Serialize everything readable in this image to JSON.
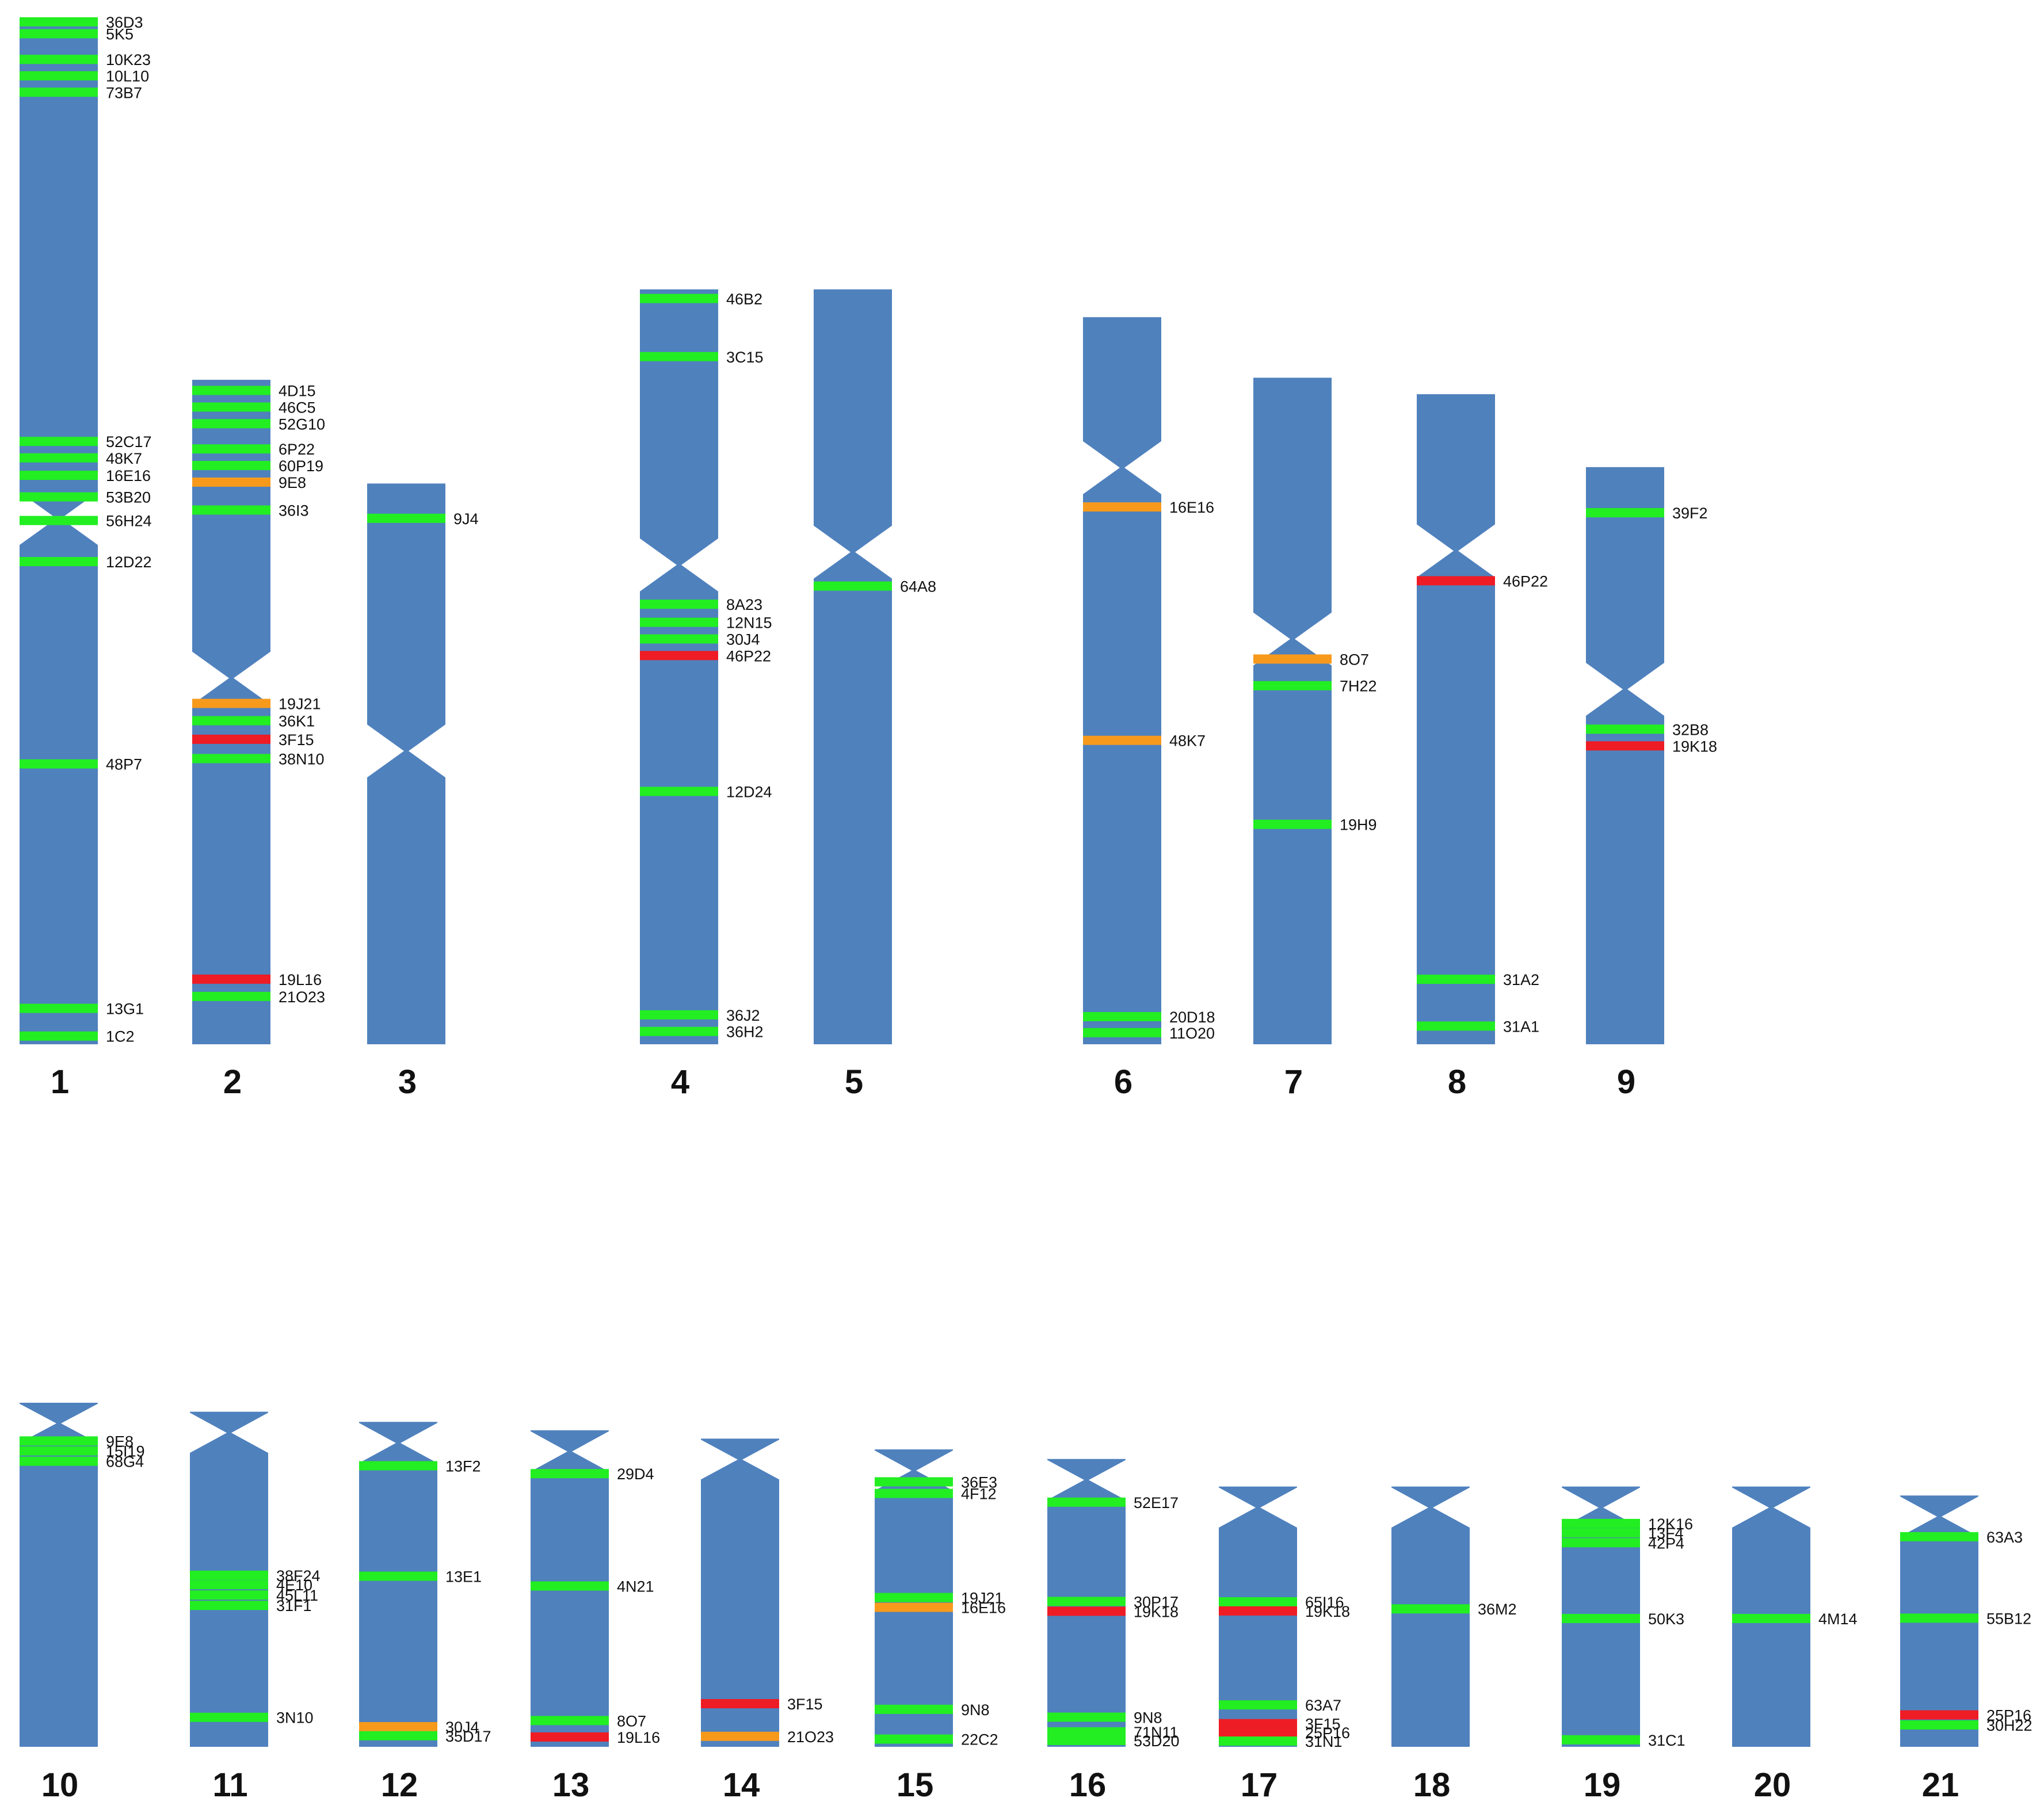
{
  "colors": {
    "chromosome": "#4f81bd",
    "band_green": "#22ee22",
    "band_orange": "#f79a1c",
    "band_red": "#ee1c24",
    "text": "#111111"
  },
  "chart_data": {
    "type": "karyotype-marker-map",
    "unit": "relative position along chromosome (0 = top, 1 = bottom)",
    "chromosomes": [
      {
        "id": "1",
        "label": "1",
        "length": 1.0,
        "centromere": 0.488,
        "bands": [
          {
            "name": "36D3",
            "pos": 0.0,
            "color": "green"
          },
          {
            "name": "5K5",
            "pos": 0.016,
            "color": "green"
          },
          {
            "name": "10K23",
            "pos": 0.041,
            "color": "green"
          },
          {
            "name": "10L10",
            "pos": 0.057,
            "color": "green"
          },
          {
            "name": "73B7",
            "pos": 0.073,
            "color": "green"
          },
          {
            "name": "52C17",
            "pos": 0.413,
            "color": "green"
          },
          {
            "name": "48K7",
            "pos": 0.429,
            "color": "green"
          },
          {
            "name": "16E16",
            "pos": 0.446,
            "color": "green"
          },
          {
            "name": "53B20",
            "pos": 0.467,
            "color": "green"
          },
          {
            "name": "56H24",
            "pos": 0.49,
            "color": "green"
          },
          {
            "name": "12D22",
            "pos": 0.53,
            "color": "green"
          },
          {
            "name": "48P7",
            "pos": 0.727,
            "color": "green"
          },
          {
            "name": "13G1",
            "pos": 0.965,
            "color": "green"
          },
          {
            "name": "1C2",
            "pos": 0.992,
            "color": "green"
          }
        ]
      },
      {
        "id": "2",
        "label": "2",
        "length": 0.647,
        "centromere": 0.449,
        "bands": [
          {
            "name": "4D15",
            "pos": 0.016,
            "color": "green"
          },
          {
            "name": "46C5",
            "pos": 0.041,
            "color": "green"
          },
          {
            "name": "52G10",
            "pos": 0.066,
            "color": "green"
          },
          {
            "name": "6P22",
            "pos": 0.104,
            "color": "green"
          },
          {
            "name": "60P19",
            "pos": 0.129,
            "color": "green"
          },
          {
            "name": "9E8",
            "pos": 0.154,
            "color": "orange"
          },
          {
            "name": "36I3",
            "pos": 0.196,
            "color": "green"
          },
          {
            "name": "19J21",
            "pos": 0.487,
            "color": "orange"
          },
          {
            "name": "36K1",
            "pos": 0.513,
            "color": "green"
          },
          {
            "name": "3F15",
            "pos": 0.541,
            "color": "red"
          },
          {
            "name": "38N10",
            "pos": 0.57,
            "color": "green"
          },
          {
            "name": "19L16",
            "pos": 0.902,
            "color": "red"
          },
          {
            "name": "21O23",
            "pos": 0.928,
            "color": "green"
          }
        ]
      },
      {
        "id": "3",
        "label": "3",
        "length": 0.546,
        "centromere": 0.477,
        "bands": [
          {
            "name": "9J4",
            "pos": 0.062,
            "color": "green"
          }
        ]
      },
      {
        "id": "4",
        "label": "4",
        "length": 0.735,
        "centromere": 0.365,
        "bands": [
          {
            "name": "46B2",
            "pos": 0.012,
            "color": "green"
          },
          {
            "name": "3C15",
            "pos": 0.089,
            "color": "green"
          },
          {
            "name": "8A23",
            "pos": 0.417,
            "color": "green"
          },
          {
            "name": "12N15",
            "pos": 0.441,
            "color": "green"
          },
          {
            "name": "30J4",
            "pos": 0.463,
            "color": "green"
          },
          {
            "name": "46P22",
            "pos": 0.485,
            "color": "red"
          },
          {
            "name": "12D24",
            "pos": 0.665,
            "color": "green"
          },
          {
            "name": "36J2",
            "pos": 0.961,
            "color": "green"
          },
          {
            "name": "36H2",
            "pos": 0.983,
            "color": "green"
          }
        ]
      },
      {
        "id": "5",
        "label": "5",
        "length": 0.735,
        "centromere": 0.348,
        "bands": [
          {
            "name": "64A8",
            "pos": 0.393,
            "color": "green"
          }
        ]
      },
      {
        "id": "6",
        "label": "6",
        "length": 0.708,
        "centromere": 0.207,
        "bands": [
          {
            "name": "16E16",
            "pos": 0.261,
            "color": "orange"
          },
          {
            "name": "48K7",
            "pos": 0.582,
            "color": "orange"
          },
          {
            "name": "20D18",
            "pos": 0.962,
            "color": "green"
          },
          {
            "name": "11O20",
            "pos": 0.984,
            "color": "green"
          }
        ]
      },
      {
        "id": "7",
        "label": "7",
        "length": 0.649,
        "centromere": 0.392,
        "bands": [
          {
            "name": "8O7",
            "pos": 0.422,
            "color": "orange"
          },
          {
            "name": "7H22",
            "pos": 0.462,
            "color": "green"
          },
          {
            "name": "19H9",
            "pos": 0.67,
            "color": "green"
          }
        ]
      },
      {
        "id": "8",
        "label": "8",
        "length": 0.633,
        "centromere": 0.241,
        "bands": [
          {
            "name": "46P22",
            "pos": 0.287,
            "color": "red"
          },
          {
            "name": "31A2",
            "pos": 0.9,
            "color": "green"
          },
          {
            "name": "31A1",
            "pos": 0.972,
            "color": "green"
          }
        ]
      },
      {
        "id": "9",
        "label": "9",
        "length": 0.562,
        "centromere": 0.385,
        "bands": [
          {
            "name": "39F2",
            "pos": 0.079,
            "color": "green"
          },
          {
            "name": "32B8",
            "pos": 0.454,
            "color": "green"
          },
          {
            "name": "19K18",
            "pos": 0.483,
            "color": "red"
          }
        ]
      },
      {
        "id": "10",
        "label": "10",
        "length": 0.575,
        "centromere": 0.06,
        "bands": [
          {
            "name": "9E8",
            "pos": 0.111,
            "color": "green"
          },
          {
            "name": "15I19",
            "pos": 0.14,
            "color": "green"
          },
          {
            "name": "68G4",
            "pos": 0.17,
            "color": "green"
          }
        ]
      },
      {
        "id": "11",
        "label": "11",
        "length": 0.56,
        "centromere": 0.063,
        "bands": [
          {
            "name": "38F24",
            "pos": 0.488,
            "color": "green"
          },
          {
            "name": "4E10",
            "pos": 0.516,
            "color": "green"
          },
          {
            "name": "45L11",
            "pos": 0.547,
            "color": "green"
          },
          {
            "name": "31F1",
            "pos": 0.578,
            "color": "green"
          },
          {
            "name": "3N10",
            "pos": 0.912,
            "color": "green"
          }
        ]
      },
      {
        "id": "12",
        "label": "12",
        "length": 0.543,
        "centromere": 0.065,
        "bands": [
          {
            "name": "13F2",
            "pos": 0.135,
            "color": "green"
          },
          {
            "name": "13E1",
            "pos": 0.475,
            "color": "green"
          },
          {
            "name": "30J4",
            "pos": 0.938,
            "color": "orange"
          },
          {
            "name": "35D17",
            "pos": 0.966,
            "color": "green"
          }
        ]
      },
      {
        "id": "13",
        "label": "13",
        "length": 0.529,
        "centromere": 0.067,
        "bands": [
          {
            "name": "29D4",
            "pos": 0.137,
            "color": "green"
          },
          {
            "name": "4N21",
            "pos": 0.492,
            "color": "green"
          },
          {
            "name": "8O7",
            "pos": 0.917,
            "color": "green"
          },
          {
            "name": "19L16",
            "pos": 0.969,
            "color": "red"
          }
        ]
      },
      {
        "id": "14",
        "label": "14",
        "length": 0.515,
        "centromere": 0.068,
        "bands": [
          {
            "name": "3F15",
            "pos": 0.86,
            "color": "red"
          },
          {
            "name": "21O23",
            "pos": 0.966,
            "color": "orange"
          }
        ]
      },
      {
        "id": "15",
        "label": "15",
        "length": 0.497,
        "centromere": 0.071,
        "bands": [
          {
            "name": "36E3",
            "pos": 0.109,
            "color": "green"
          },
          {
            "name": "4F12",
            "pos": 0.148,
            "color": "green"
          },
          {
            "name": "19J21",
            "pos": 0.498,
            "color": "green"
          },
          {
            "name": "16E16",
            "pos": 0.531,
            "color": "orange"
          },
          {
            "name": "9N8",
            "pos": 0.874,
            "color": "green"
          },
          {
            "name": "22C2",
            "pos": 0.974,
            "color": "green"
          }
        ]
      },
      {
        "id": "16",
        "label": "16",
        "length": 0.481,
        "centromere": 0.073,
        "bands": [
          {
            "name": "52E17",
            "pos": 0.15,
            "color": "green"
          },
          {
            "name": "30P17",
            "pos": 0.495,
            "color": "green"
          },
          {
            "name": "19K18",
            "pos": 0.529,
            "color": "red"
          },
          {
            "name": "9N8",
            "pos": 0.897,
            "color": "green"
          },
          {
            "name": "71N11",
            "pos": 0.948,
            "color": "green"
          },
          {
            "name": "53D20",
            "pos": 0.978,
            "color": "green"
          }
        ]
      },
      {
        "id": "17",
        "label": "17",
        "length": 0.435,
        "centromere": 0.081,
        "bands": [
          {
            "name": "65I16",
            "pos": 0.443,
            "color": "green"
          },
          {
            "name": "19K18",
            "pos": 0.478,
            "color": "red"
          },
          {
            "name": "63A7",
            "pos": 0.839,
            "color": "green"
          },
          {
            "name": "3F15",
            "pos": 0.911,
            "color": "red"
          },
          {
            "name": "25P16",
            "pos": 0.945,
            "color": "red"
          },
          {
            "name": "31N1",
            "pos": 0.978,
            "color": "green"
          }
        ]
      },
      {
        "id": "18",
        "label": "18",
        "length": 0.435,
        "centromere": 0.081,
        "bands": [
          {
            "name": "36M2",
            "pos": 0.47,
            "color": "green"
          }
        ]
      },
      {
        "id": "19",
        "label": "19",
        "length": 0.435,
        "centromere": 0.081,
        "bands": [
          {
            "name": "12K16",
            "pos": 0.142,
            "color": "green"
          },
          {
            "name": "13F4",
            "pos": 0.178,
            "color": "green"
          },
          {
            "name": "42P4",
            "pos": 0.216,
            "color": "green"
          },
          {
            "name": "50K3",
            "pos": 0.507,
            "color": "green"
          },
          {
            "name": "31C1",
            "pos": 0.973,
            "color": "green"
          }
        ]
      },
      {
        "id": "20",
        "label": "20",
        "length": 0.435,
        "centromere": 0.081,
        "bands": [
          {
            "name": "4M14",
            "pos": 0.507,
            "color": "green"
          }
        ]
      },
      {
        "id": "21",
        "label": "21",
        "length": 0.42,
        "centromere": 0.084,
        "bands": [
          {
            "name": "63A3",
            "pos": 0.164,
            "color": "green"
          },
          {
            "name": "55B12",
            "pos": 0.488,
            "color": "green"
          },
          {
            "name": "25P16",
            "pos": 0.873,
            "color": "red"
          },
          {
            "name": "30H22",
            "pos": 0.913,
            "color": "green"
          }
        ]
      }
    ]
  }
}
